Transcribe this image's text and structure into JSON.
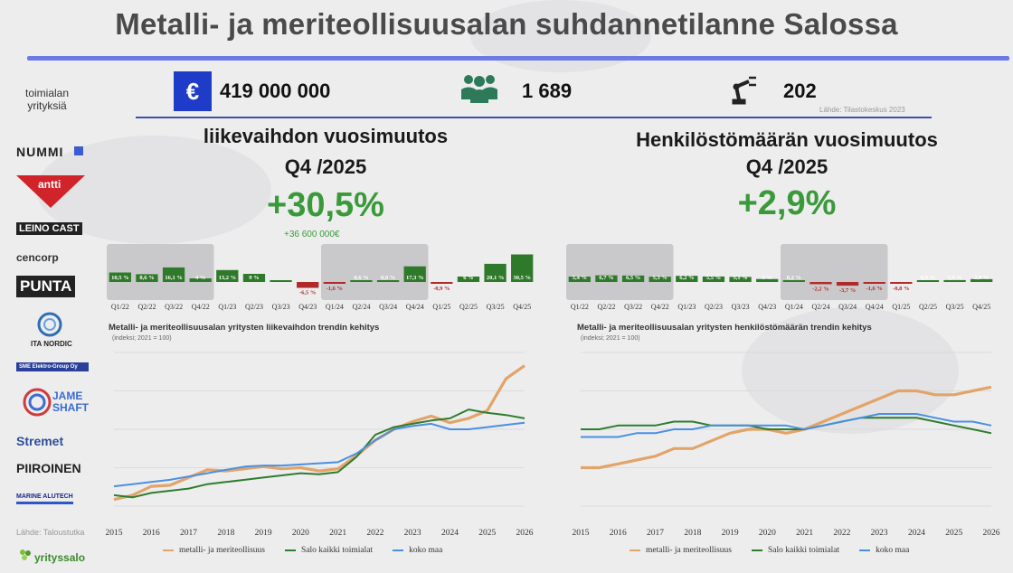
{
  "title": "Metalli- ja meriteollisuusalan suhdannetilanne Salossa",
  "kpis": {
    "companies_label": "toimialan yrityksiä",
    "euro_symbol": "€",
    "revenue": "419 000 000",
    "employees": "1 689",
    "companies": "202",
    "source": "Lähde: Tilastokeskus 2023"
  },
  "logos": [
    "NUMMI",
    "antti",
    "LEINO CAST",
    "cencorp",
    "PUNTA",
    "ITA NORDIC",
    "SME Elektro-Group Oy",
    "JAME SHAFT",
    "Stremet",
    "PIIROINEN",
    "MARINE ALUTECH"
  ],
  "footer": {
    "source": "Lähde: Taloustutka",
    "brand": "yrityssalo"
  },
  "colors": {
    "accent": "#6c7ce4",
    "green_dark": "#2f7a2a",
    "red": "#b02a2a",
    "orange": "#e2a468",
    "green_line": "#2e7d2e",
    "blue_line": "#4a90e2"
  },
  "chart_data": [
    {
      "type": "bar",
      "title": "liikevaihdon vuosimuutos",
      "subtitle": "Q4 /2025",
      "headline": "+30,5%",
      "headline_sub": "+36 600 000€",
      "categories": [
        "Q1/22",
        "Q2/22",
        "Q3/22",
        "Q4/22",
        "Q1/23",
        "Q2/23",
        "Q3/23",
        "Q4/23",
        "Q1/24",
        "Q2/24",
        "Q3/24",
        "Q4/24",
        "Q1/25",
        "Q2/25",
        "Q3/25",
        "Q4/25"
      ],
      "values": [
        10.5,
        8.6,
        16.1,
        4,
        13.2,
        9,
        0,
        -6.5,
        -1.6,
        0.6,
        0.9,
        17.3,
        -0.9,
        6,
        20.1,
        30.5
      ],
      "labels": [
        "10,5 %",
        "8,6 %",
        "16,1 %",
        "4 %",
        "13,2 %",
        "9 %",
        "",
        "-6,5 %",
        "-1,6 %",
        "0,6 %",
        "0,9 %",
        "17,3 %",
        "-0,9 %",
        "6 %",
        "20,1 %",
        "30,5 %"
      ]
    },
    {
      "type": "bar",
      "title": "Henkilöstömäärän vuosimuutos",
      "subtitle": "Q4 /2025",
      "headline": "+2,9%",
      "categories": [
        "Q1/22",
        "Q2/22",
        "Q3/22",
        "Q4/22",
        "Q1/23",
        "Q2/23",
        "Q3/23",
        "Q4/23",
        "Q1/24",
        "Q2/24",
        "Q3/24",
        "Q4/24",
        "Q1/25",
        "Q2/25",
        "Q3/25",
        "Q4/25"
      ],
      "values": [
        5.4,
        6.7,
        6.5,
        5.3,
        6.2,
        5.5,
        5.1,
        3,
        0.2,
        -2.2,
        -3.7,
        -1.6,
        -0.8,
        0.9,
        1.9,
        2.9
      ],
      "labels": [
        "5,4 %",
        "6,7 %",
        "6,5 %",
        "5,3 %",
        "6,2 %",
        "5,5 %",
        "5,1 %",
        "3 %",
        "0,2 %",
        "-2,2 %",
        "-3,7 %",
        "-1,6 %",
        "-0,8 %",
        "0,9 %",
        "1,9 %",
        "2,9 %"
      ]
    },
    {
      "type": "line",
      "title": "Metalli- ja meriteollisuusalan yritysten liikevaihdon trendin kehitys",
      "subtitle": "(indeksi; 2021 = 100)",
      "x_ticks": [
        "2015",
        "2016",
        "2017",
        "2018",
        "2019",
        "2020",
        "2021",
        "2022",
        "2023",
        "2024",
        "2025",
        "2026"
      ],
      "x": [
        2015.0,
        2015.5,
        2016.0,
        2016.5,
        2017.0,
        2017.5,
        2018.0,
        2018.5,
        2019.0,
        2019.5,
        2020.0,
        2020.5,
        2021.0,
        2021.5,
        2022.0,
        2022.5,
        2023.0,
        2023.5,
        2024.0,
        2024.5,
        2025.0,
        2025.5,
        2026.0
      ],
      "ylim": [
        60,
        200
      ],
      "series": [
        {
          "name": "metalli- ja meriteollisuus",
          "color": "#e2a468",
          "values": [
            66,
            70,
            78,
            79,
            86,
            93,
            92,
            94,
            96,
            94,
            95,
            92,
            94,
            106,
            120,
            130,
            137,
            142,
            136,
            140,
            147,
            176,
            188
          ]
        },
        {
          "name": "Salo kaikki toimialat",
          "color": "#2e7d2e",
          "values": [
            70,
            68,
            72,
            74,
            76,
            80,
            82,
            84,
            86,
            88,
            90,
            89,
            91,
            105,
            125,
            132,
            135,
            138,
            140,
            148,
            145,
            143,
            140
          ]
        },
        {
          "name": "koko maa",
          "color": "#4a90e2",
          "values": [
            78,
            80,
            82,
            84,
            87,
            90,
            93,
            96,
            97,
            97,
            98,
            99,
            100,
            108,
            120,
            130,
            133,
            135,
            130,
            130,
            132,
            134,
            136
          ]
        }
      ]
    },
    {
      "type": "line",
      "title": "Metalli- ja meriteollisuusalan yritysten henkilöstömäärän trendin kehitys",
      "subtitle": "(indeksi; 2021 = 100)",
      "x_ticks": [
        "2015",
        "2016",
        "2017",
        "2018",
        "2019",
        "2020",
        "2021",
        "2022",
        "2023",
        "2024",
        "2025",
        "2026"
      ],
      "x": [
        2015.0,
        2015.5,
        2016.0,
        2016.5,
        2017.0,
        2017.5,
        2018.0,
        2018.5,
        2019.0,
        2019.5,
        2020.0,
        2020.5,
        2021.0,
        2021.5,
        2022.0,
        2022.5,
        2023.0,
        2023.5,
        2024.0,
        2024.5,
        2025.0,
        2025.5,
        2026.0
      ],
      "ylim": [
        80,
        120
      ],
      "series": [
        {
          "name": "metalli- ja meriteollisuus",
          "color": "#e2a468",
          "values": [
            90,
            90,
            91,
            92,
            93,
            95,
            95,
            97,
            99,
            100,
            100,
            99,
            100,
            102,
            104,
            106,
            108,
            110,
            110,
            109,
            109,
            110,
            111
          ]
        },
        {
          "name": "Salo kaikki toimialat",
          "color": "#2e7d2e",
          "values": [
            100,
            100,
            101,
            101,
            101,
            102,
            102,
            101,
            101,
            101,
            100,
            100,
            100,
            101,
            102,
            103,
            103,
            103,
            103,
            102,
            101,
            100,
            99
          ]
        },
        {
          "name": "koko maa",
          "color": "#4a90e2",
          "values": [
            98,
            98,
            98,
            99,
            99,
            100,
            100,
            101,
            101,
            101,
            101,
            101,
            100,
            101,
            102,
            103,
            104,
            104,
            104,
            103,
            102,
            102,
            101
          ]
        }
      ]
    }
  ]
}
